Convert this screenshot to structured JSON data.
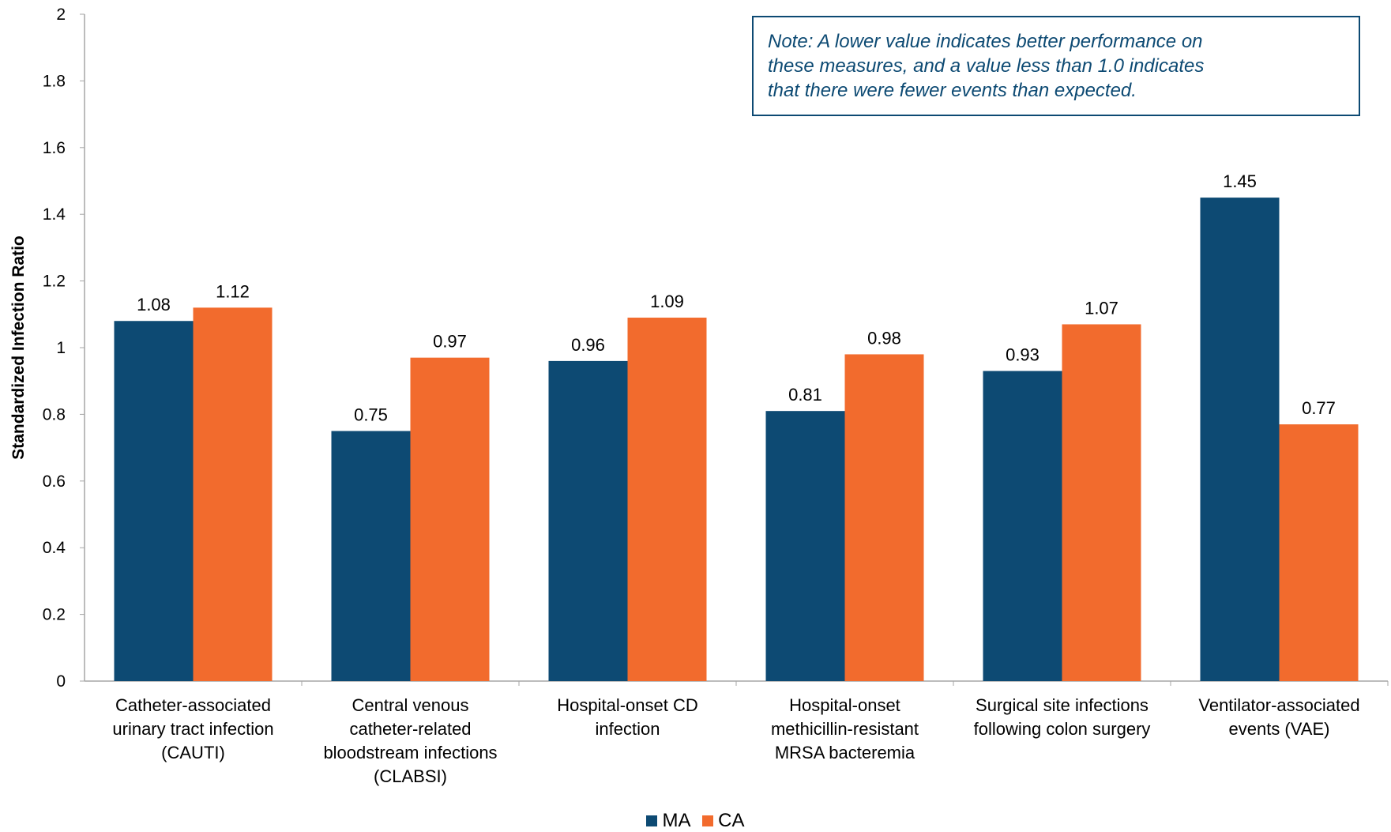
{
  "chart_data": {
    "type": "bar",
    "ylabel": "Standardized Infection Ratio",
    "ylim": [
      0,
      2
    ],
    "yticks": [
      "0",
      "0.2",
      "0.4",
      "0.6",
      "0.8",
      "1",
      "1.2",
      "1.4",
      "1.6",
      "1.8",
      "2"
    ],
    "categories": [
      [
        "Catheter-associated",
        "urinary tract infection",
        "(CAUTI)"
      ],
      [
        "Central venous",
        "catheter-related",
        "bloodstream infections",
        "(CLABSI)"
      ],
      [
        "Hospital-onset CD",
        "infection"
      ],
      [
        "Hospital-onset",
        "methicillin-resistant",
        "MRSA bacteremia"
      ],
      [
        "Surgical site infections",
        "following colon surgery"
      ],
      [
        "Ventilator-associated",
        "events (VAE)"
      ]
    ],
    "series": [
      {
        "name": "MA",
        "color": "#0d4a73",
        "values": [
          1.08,
          0.75,
          0.96,
          0.81,
          0.93,
          1.45
        ],
        "labels": [
          "1.08",
          "0.75",
          "0.96",
          "0.81",
          "0.93",
          "1.45"
        ]
      },
      {
        "name": "CA",
        "color": "#f26b2d",
        "values": [
          1.12,
          0.97,
          1.09,
          0.98,
          1.07,
          0.77
        ],
        "labels": [
          "1.12",
          "0.97",
          "1.09",
          "0.98",
          "1.07",
          "0.77"
        ]
      }
    ],
    "legend": "bottom",
    "grid": false
  },
  "note": {
    "lines": [
      "Note: A lower value indicates better performance on",
      "these measures, and a value less than 1.0 indicates",
      "that there were fewer events than expected."
    ]
  },
  "legend": {
    "items": [
      {
        "label": "MA",
        "color": "#0d4a73"
      },
      {
        "label": "CA",
        "color": "#f26b2d"
      }
    ]
  }
}
